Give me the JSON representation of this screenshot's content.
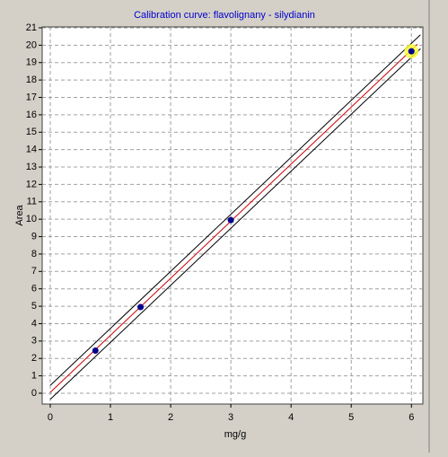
{
  "chart_data": {
    "type": "scatter",
    "title": "Calibration curve: flavolignany - silydianin",
    "x_label": "mg/g",
    "y_label": "Area",
    "xlim": [
      -0.134,
      6.19
    ],
    "ylim": [
      -0.62,
      21.05
    ],
    "xticks": [
      0,
      1,
      2,
      3,
      4,
      5,
      6
    ],
    "yticks": [
      0,
      1,
      2,
      3,
      4,
      5,
      6,
      7,
      8,
      9,
      10,
      11,
      12,
      13,
      14,
      15,
      16,
      17,
      18,
      19,
      20,
      21
    ],
    "grid": true,
    "points": {
      "color": "#00008b",
      "x": [
        0.75,
        1.5,
        3,
        6
      ],
      "values": [
        2.45,
        4.95,
        9.95,
        19.65
      ],
      "highlighted_point": 3,
      "highlight_color": "#ffff33"
    },
    "lines": [
      {
        "color": "#000000",
        "x": [
          0,
          6.15
        ],
        "values": [
          0.45,
          20.6
        ]
      },
      {
        "color": "#000000",
        "x": [
          0,
          6.15
        ],
        "values": [
          -0.35,
          19.8
        ]
      },
      {
        "color": "#cc0000",
        "x": [
          0,
          6.1
        ],
        "values": [
          0.05,
          20.05
        ]
      }
    ]
  }
}
